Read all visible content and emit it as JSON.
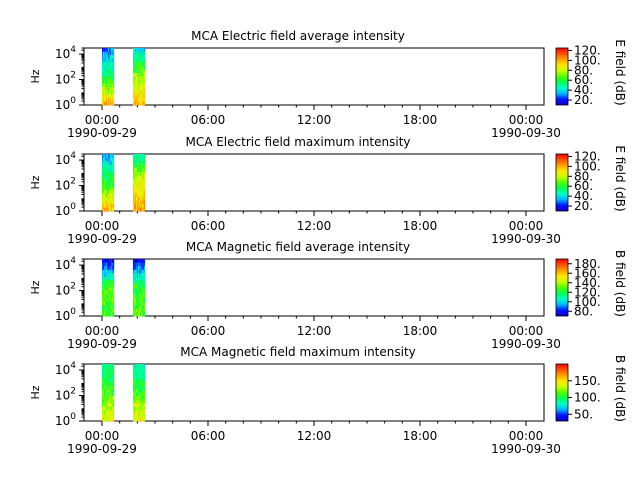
{
  "figure": {
    "time_labels": [
      "00:00",
      "06:00",
      "12:00",
      "18:00",
      "00:00"
    ],
    "date_start": "1990-09-29",
    "date_end": "1990-09-30"
  },
  "colors": {
    "colormap": [
      "#1400c8",
      "#0014ff",
      "#00b4ff",
      "#00ffc8",
      "#00ff50",
      "#50ff00",
      "#c8ff00",
      "#ffe600",
      "#ffa000",
      "#ff5000",
      "#ff0000"
    ],
    "axis": "#000000",
    "background": "#ffffff"
  },
  "chart_data": [
    {
      "type": "heatmap",
      "title": "MCA  Electric field average intensity",
      "ylabel": "Hz",
      "yscale": "log",
      "ylim": [
        1,
        30000
      ],
      "yticks": [
        "10^0",
        "10^2",
        "10^4"
      ],
      "xlim": [
        "1990-09-29 00:00",
        "1990-09-30 00:00"
      ],
      "xticks": [
        "00:00",
        "06:00",
        "12:00",
        "18:00",
        "00:00"
      ],
      "colorbar": {
        "label": "E field (dB)",
        "ticks": [
          "20.",
          "40.",
          "60.",
          "80.",
          "100.",
          "120."
        ],
        "range": [
          10,
          125
        ]
      },
      "segments": [
        {
          "start": "00:00",
          "end": "00:40",
          "low_freq_db": 95,
          "mid_freq_db": 55,
          "high_freq_db": 30
        },
        {
          "start": "01:45",
          "end": "02:25",
          "low_freq_db": 95,
          "mid_freq_db": 75,
          "high_freq_db": 40
        }
      ]
    },
    {
      "type": "heatmap",
      "title": "MCA  Electric field maximum intensity",
      "ylabel": "Hz",
      "yscale": "log",
      "ylim": [
        1,
        30000
      ],
      "yticks": [
        "10^0",
        "10^2",
        "10^4"
      ],
      "xlim": [
        "1990-09-29 00:00",
        "1990-09-30 00:00"
      ],
      "xticks": [
        "00:00",
        "06:00",
        "12:00",
        "18:00",
        "00:00"
      ],
      "colorbar": {
        "label": "E field (dB)",
        "ticks": [
          "20.",
          "40.",
          "60.",
          "80.",
          "100.",
          "120."
        ],
        "range": [
          10,
          125
        ]
      },
      "segments": [
        {
          "start": "00:00",
          "end": "00:40",
          "low_freq_db": 100,
          "mid_freq_db": 60,
          "high_freq_db": 35
        },
        {
          "start": "01:45",
          "end": "02:25",
          "low_freq_db": 100,
          "mid_freq_db": 85,
          "high_freq_db": 45
        }
      ]
    },
    {
      "type": "heatmap",
      "title": "MCA  Magnetic field average intensity",
      "ylabel": "Hz",
      "yscale": "log",
      "ylim": [
        1,
        30000
      ],
      "yticks": [
        "10^0",
        "10^2",
        "10^4"
      ],
      "xlim": [
        "1990-09-29 00:00",
        "1990-09-30 00:00"
      ],
      "xticks": [
        "00:00",
        "06:00",
        "12:00",
        "18:00",
        "00:00"
      ],
      "colorbar": {
        "label": "B field (dB)",
        "ticks": [
          "80.",
          "100.",
          "120.",
          "140.",
          "160.",
          "180."
        ],
        "range": [
          70,
          190
        ]
      },
      "segments": [
        {
          "start": "00:00",
          "end": "00:40",
          "low_freq_db": 125,
          "mid_freq_db": 130,
          "high_freq_db": 75
        },
        {
          "start": "01:45",
          "end": "02:25",
          "low_freq_db": 130,
          "mid_freq_db": 125,
          "high_freq_db": 75
        }
      ]
    },
    {
      "type": "heatmap",
      "title": "MCA  Magnetic field maximum intensity",
      "ylabel": "Hz",
      "yscale": "log",
      "ylim": [
        1,
        30000
      ],
      "yticks": [
        "10^0",
        "10^2",
        "10^4"
      ],
      "xlim": [
        "1990-09-29 00:00",
        "1990-09-30 00:00"
      ],
      "xticks": [
        "00:00",
        "06:00",
        "12:00",
        "18:00",
        "00:00"
      ],
      "colorbar": {
        "label": "B field (dB)",
        "ticks": [
          "50.",
          "100.",
          "150."
        ],
        "range": [
          30,
          200
        ]
      },
      "segments": [
        {
          "start": "00:00",
          "end": "00:40",
          "low_freq_db": 140,
          "mid_freq_db": 110,
          "high_freq_db": 90
        },
        {
          "start": "01:45",
          "end": "02:25",
          "low_freq_db": 145,
          "mid_freq_db": 110,
          "high_freq_db": 85
        }
      ]
    }
  ]
}
